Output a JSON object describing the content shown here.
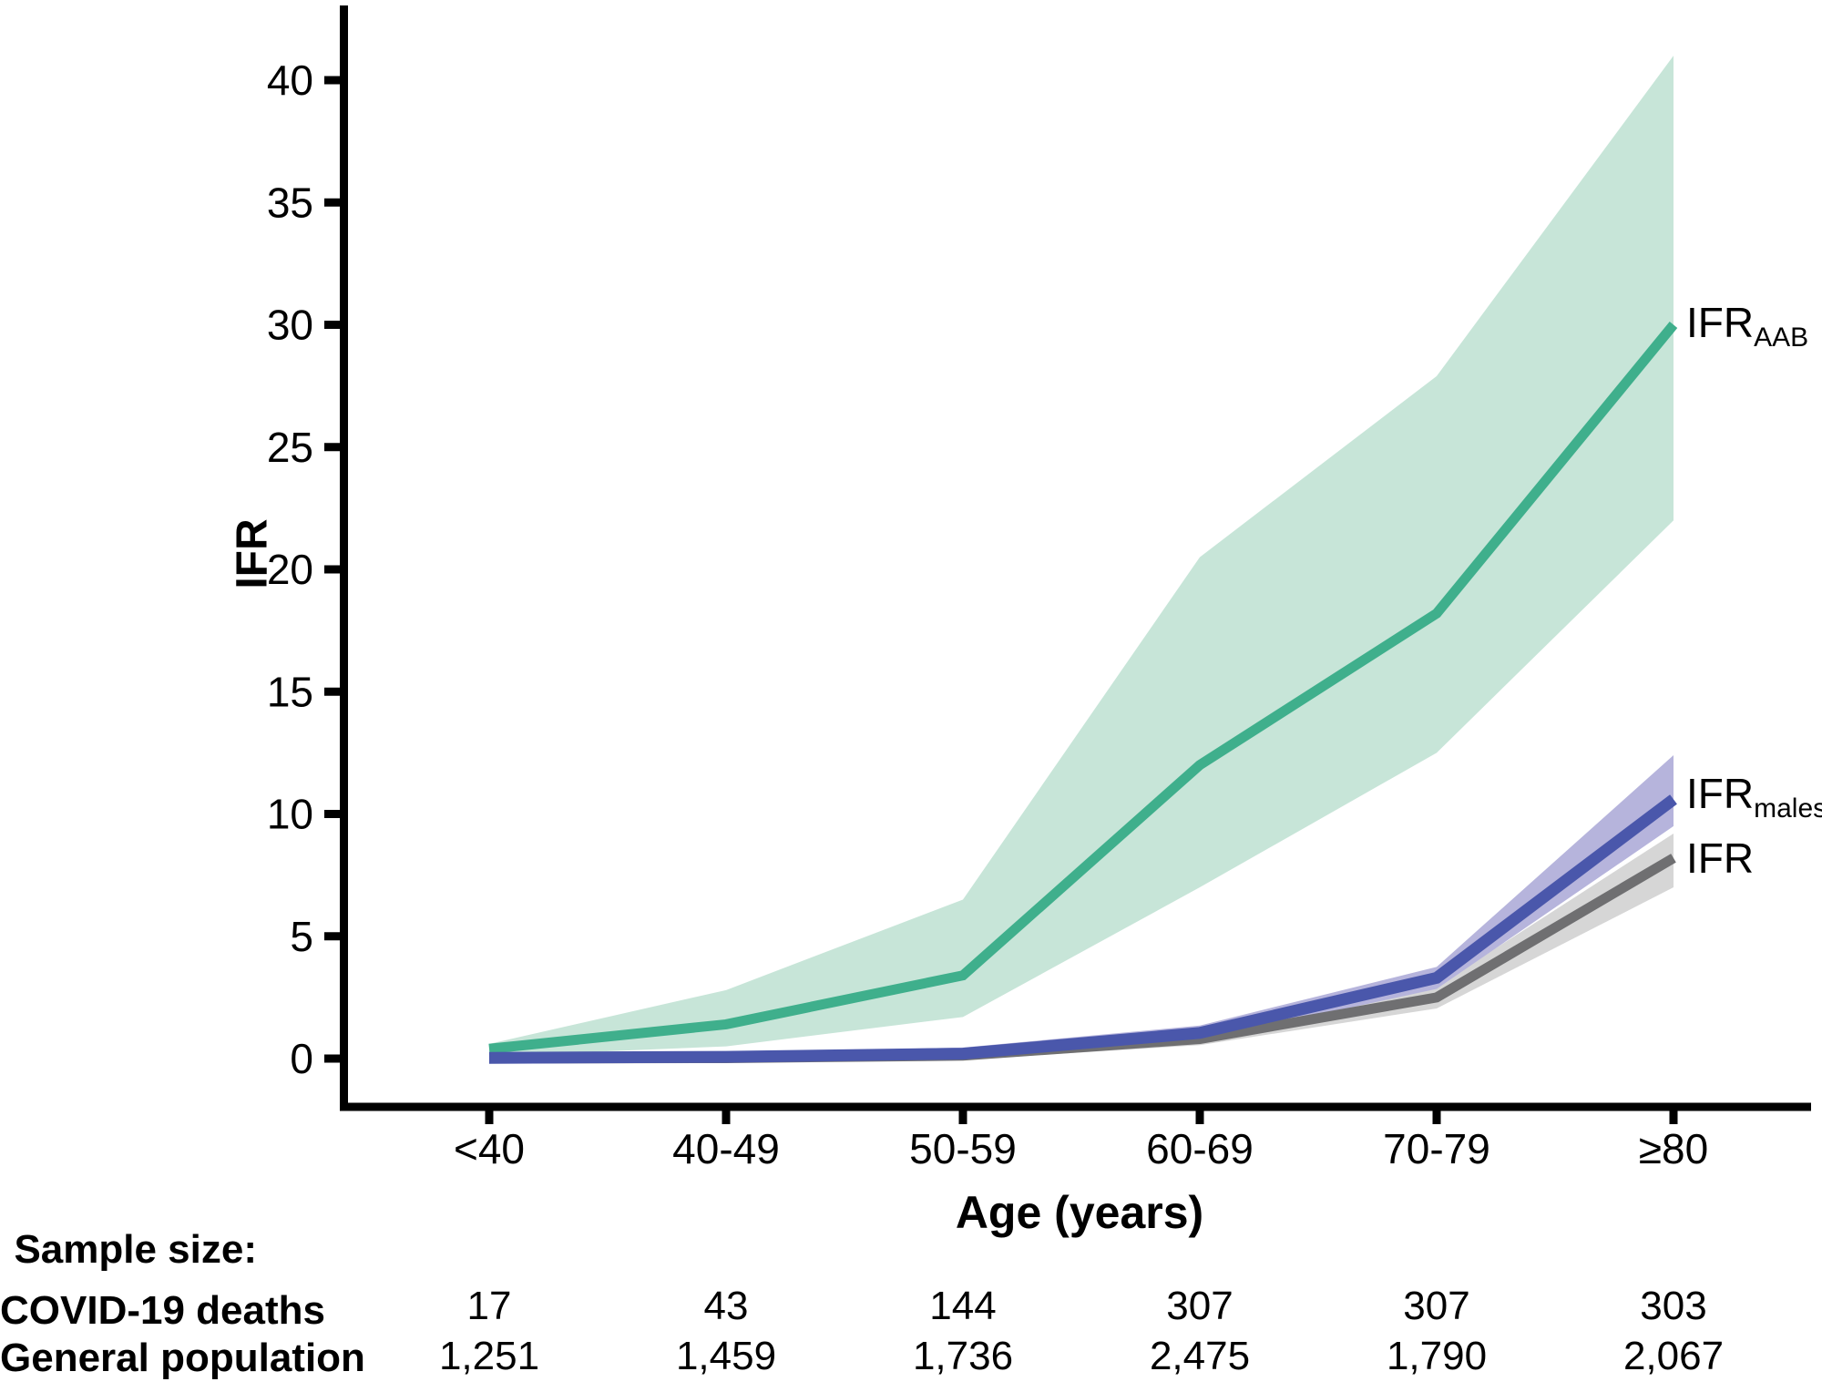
{
  "chart_data": {
    "type": "line",
    "title": "",
    "xlabel": "Age (years)",
    "ylabel": "IFR",
    "categories": [
      "<40",
      "40-49",
      "50-59",
      "60-69",
      "70-79",
      "≥80"
    ],
    "yticks": [
      0,
      5,
      10,
      15,
      20,
      25,
      30,
      35,
      40
    ],
    "ylim": [
      0,
      42
    ],
    "grid": false,
    "legend_position": "right-end-labels",
    "series": [
      {
        "name": "IFR_AAB",
        "label_main": "IFR",
        "label_sub": "AAB",
        "line_color": "#3FAF8C",
        "band_color": "#C7E5D8",
        "values": [
          0.4,
          1.4,
          3.4,
          12.0,
          18.2,
          30.0
        ],
        "ci_low": [
          0.1,
          0.5,
          1.7,
          7.0,
          12.5,
          22.0
        ],
        "ci_high": [
          0.6,
          2.8,
          6.5,
          20.5,
          27.9,
          41.0
        ]
      },
      {
        "name": "IFR_males",
        "label_main": "IFR",
        "label_sub": "males",
        "line_color": "#4A57AB",
        "band_color": "#B6B4DC",
        "values": [
          0.03,
          0.07,
          0.2,
          1.05,
          3.3,
          10.6
        ],
        "ci_low": [
          -0.15,
          -0.1,
          0.0,
          0.75,
          2.85,
          9.5
        ],
        "ci_high": [
          0.2,
          0.25,
          0.45,
          1.35,
          3.75,
          12.4
        ]
      },
      {
        "name": "IFR",
        "label_main": "IFR",
        "label_sub": "",
        "line_color": "#6F6F71",
        "band_color": "#D6D6D6",
        "values": [
          0.0,
          0.02,
          0.12,
          0.8,
          2.5,
          8.2
        ],
        "ci_low": [
          -0.15,
          -0.1,
          -0.05,
          0.55,
          2.05,
          7.0
        ],
        "ci_high": [
          0.1,
          0.12,
          0.3,
          1.05,
          2.95,
          9.2
        ]
      }
    ]
  },
  "axis": {
    "x_title": "Age (years)",
    "y_title": "IFR"
  },
  "series_labels": {
    "aab": {
      "main": "IFR",
      "sub": "AAB"
    },
    "males": {
      "main": "IFR",
      "sub": "males"
    },
    "overall": {
      "main": "IFR",
      "sub": ""
    }
  },
  "table": {
    "title": "Sample size:",
    "rows": [
      {
        "label": "COVID-19 deaths",
        "values": [
          "17",
          "43",
          "144",
          "307",
          "307",
          "303"
        ]
      },
      {
        "label": "General population",
        "values": [
          "1,251",
          "1,459",
          "1,736",
          "2,475",
          "1,790",
          "2,067"
        ]
      }
    ]
  },
  "colors": {
    "axis": "#000000",
    "aab_line": "#3FAF8C",
    "aab_band": "#C7E5D8",
    "males_line": "#4A57AB",
    "males_band": "#B6B4DC",
    "overall_line": "#6F6F71",
    "overall_band": "#D6D6D6"
  }
}
